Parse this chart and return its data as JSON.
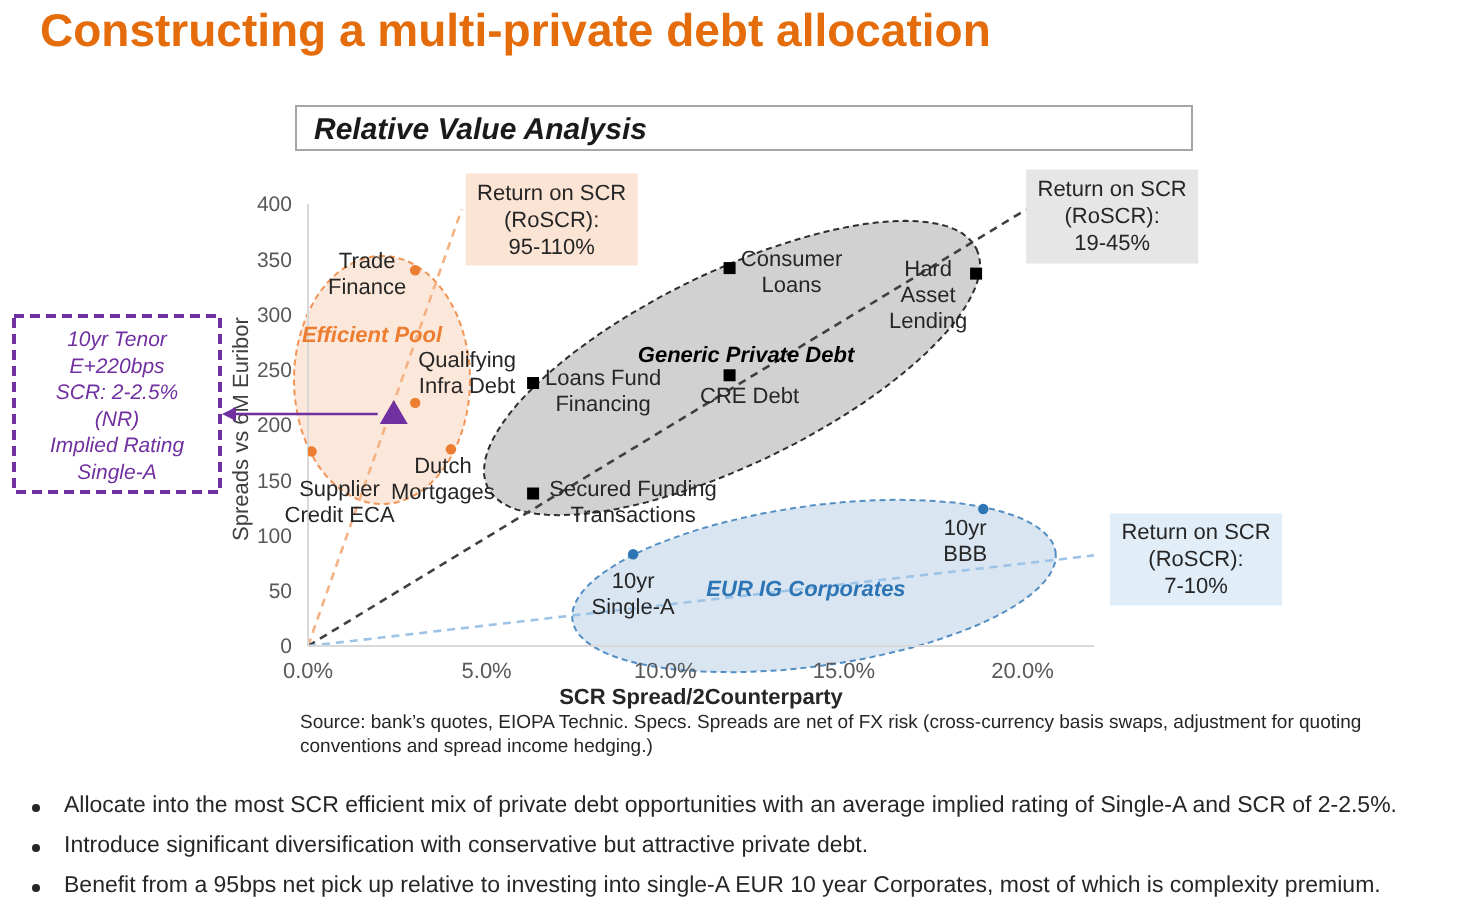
{
  "chart_data": {
    "type": "scatter",
    "title": "Constructing a multi-private debt allocation",
    "subtitle": "Relative Value Analysis",
    "xlabel": "SCR Spread/2Counterparty",
    "ylabel": "Spreads vs 6M Euribor",
    "xlim": [
      0,
      22
    ],
    "xticks": [
      {
        "value": 0,
        "label": "0.0%"
      },
      {
        "value": 5,
        "label": "5.0%"
      },
      {
        "value": 10,
        "label": "10.0%"
      },
      {
        "value": 15,
        "label": "15.0%"
      },
      {
        "value": 20,
        "label": "20.0%"
      }
    ],
    "ylim": [
      0,
      400
    ],
    "yticks": [
      0,
      50,
      100,
      150,
      200,
      250,
      300,
      350,
      400
    ],
    "series": [
      {
        "color": "#ed7d31",
        "marker": "circle",
        "x": [
          3.0,
          3.0,
          4.0,
          0.1
        ],
        "values": [
          340,
          220,
          178,
          176
        ]
      },
      {
        "color": "#000000",
        "marker": "square",
        "x": [
          11.8,
          18.7,
          6.3,
          11.8,
          6.3
        ],
        "values": [
          342,
          337,
          238,
          245,
          138
        ]
      },
      {
        "color": "#2e75b6",
        "marker": "circle",
        "x": [
          9.1,
          18.9
        ],
        "values": [
          83,
          124
        ]
      },
      {
        "color": "#7030a0",
        "marker": "triangle",
        "x": [
          2.4
        ],
        "values": [
          210
        ]
      },
      {
        "type": "line",
        "color": "#f4b183",
        "marker": "none",
        "line_style": "dashed",
        "x": [
          0,
          4.3
        ],
        "values": [
          0,
          395
        ]
      },
      {
        "type": "line",
        "color": "#404040",
        "marker": "none",
        "line_style": "dashed",
        "x": [
          0,
          20.1
        ],
        "values": [
          0,
          395
        ]
      },
      {
        "type": "line",
        "color": "#9dc3e6",
        "marker": "none",
        "line_style": "dashed",
        "x": [
          0,
          22
        ],
        "values": [
          0,
          82
        ]
      }
    ],
    "annotations": [
      {
        "text": "Trade\nFinance",
        "x": 3.0,
        "y": 340
      },
      {
        "text": "Qualifying\nInfra Debt",
        "x": 3.0,
        "y": 220
      },
      {
        "text": "Dutch\nMortgages",
        "x": 4.0,
        "y": 178
      },
      {
        "text": "Supplier\nCredit ECA",
        "x": 0.1,
        "y": 176
      },
      {
        "text": "Consumer\nLoans",
        "x": 11.8,
        "y": 342
      },
      {
        "text": "Hard\nAsset\nLending",
        "x": 18.7,
        "y": 337
      },
      {
        "text": "Loans Fund\nFinancing",
        "x": 6.3,
        "y": 238
      },
      {
        "text": "CRE Debt",
        "x": 11.8,
        "y": 245
      },
      {
        "text": "Secured Funding\nTransactions",
        "x": 6.3,
        "y": 138
      },
      {
        "text": "10yr\nSingle-A",
        "x": 9.1,
        "y": 83
      },
      {
        "text": "10yr\nBBB",
        "x": 18.9,
        "y": 124
      },
      {
        "text": "Return on SCR\n(RoSCR):\n95-110%",
        "x": 4.3,
        "y": 395
      },
      {
        "text": "Return on SCR\n(RoSCR):\n19-45%",
        "x": 20.1,
        "y": 395
      },
      {
        "text": "Return on SCR\n(RoSCR):\n7-10%",
        "x": 22,
        "y": 82
      },
      "10yr Tenor\nE+220bps\nSCR: 2-2.5%\n(NR)\nImplied Rating\nSingle-A",
      "Efficient Pool",
      "Generic Private Debt",
      "EUR IG Corporates",
      "Source: bank’s quotes, EIOPA Technic. Specs. Spreads are net of FX risk (cross-currency basis swaps, adjustment for quoting conventions and spread income hedging.)",
      "Allocate into the most SCR efficient mix of private debt opportunities with an average implied rating of Single-A and SCR of 2-2.5%.",
      "Introduce significant diversification with conservative but attractive private debt.",
      "Benefit from a 95bps net pick up relative to investing into single-A EUR 10 year Corporates, most of which is complexity premium."
    ]
  }
}
